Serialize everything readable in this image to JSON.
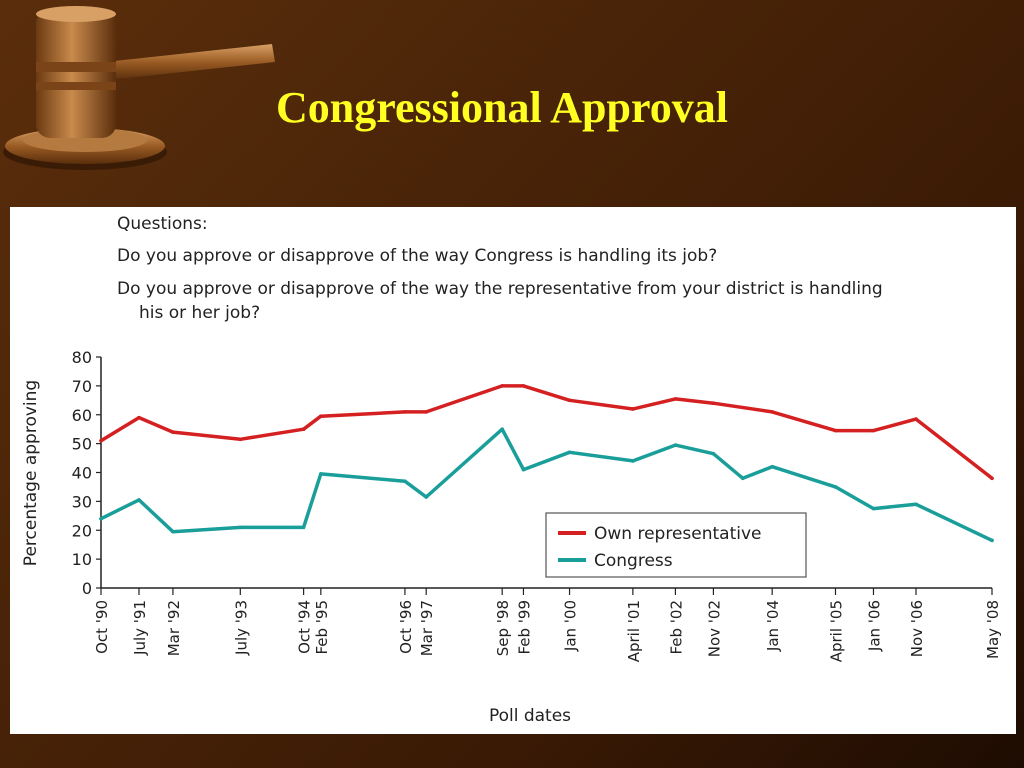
{
  "slide": {
    "title": "Congressional Approval",
    "colors": {
      "background": "#4a2408",
      "title": "#ffff22"
    },
    "icon": "gavel-icon"
  },
  "questions": {
    "heading": "Questions:",
    "q1": "Do you approve or disapprove of the way Congress is handling its job?",
    "q2_line1": "Do you approve or disapprove of the way the representative from your district is handling",
    "q2_line2": "his or her job?"
  },
  "chart_data": {
    "type": "line",
    "xlabel": "Poll dates",
    "ylabel": "Percentage approving",
    "ylim": [
      0,
      80
    ],
    "yticks": [
      0,
      10,
      20,
      30,
      40,
      50,
      60,
      70,
      80
    ],
    "grid": false,
    "legend_position": "bottom-right",
    "x_tick_labels": [
      "Oct '90",
      "July '91",
      "Mar '92",
      "July '93",
      "Oct '94",
      "Feb '95",
      "Oct '96",
      "Mar '97",
      "Sep '98",
      "Feb '99",
      "Jan '00",
      "April '01",
      "Feb '02",
      "Nov '02",
      "Jan '04",
      "April '05",
      "Jan '06",
      "Nov '06",
      "May '08"
    ],
    "x_tick_dates": [
      1990.79,
      1991.54,
      1992.21,
      1993.54,
      1994.79,
      1995.13,
      1996.79,
      1997.21,
      1998.71,
      1999.13,
      2000.04,
      2001.29,
      2002.13,
      2002.88,
      2004.04,
      2005.29,
      2006.04,
      2006.88,
      2008.38
    ],
    "series": [
      {
        "name": "Own representative",
        "color": "#d42020",
        "x": [
          1990.79,
          1991.54,
          1992.21,
          1993.54,
          1994.79,
          1995.13,
          1996.79,
          1997.21,
          1998.71,
          1999.13,
          2000.04,
          2001.29,
          2002.13,
          2002.88,
          2004.04,
          2005.29,
          2006.04,
          2006.88,
          2008.38
        ],
        "y": [
          51,
          59,
          54,
          51.5,
          55,
          59.5,
          61,
          61,
          70,
          70,
          65,
          62,
          65.5,
          64,
          61,
          54.5,
          54.5,
          58.5,
          38
        ]
      },
      {
        "name": "Congress",
        "color": "#1a9e9a",
        "x": [
          1990.79,
          1991.54,
          1992.21,
          1993.54,
          1994.79,
          1995.13,
          1996.79,
          1997.21,
          1998.71,
          1999.13,
          2000.04,
          2001.29,
          2002.13,
          2002.88,
          2003.46,
          2004.04,
          2005.29,
          2006.04,
          2006.88,
          2008.38
        ],
        "y": [
          24,
          30.5,
          19.5,
          21,
          21,
          39.5,
          37,
          31.5,
          55,
          41,
          47,
          44,
          49.5,
          46.5,
          38,
          42,
          35,
          27.5,
          29,
          16.5
        ]
      }
    ]
  }
}
